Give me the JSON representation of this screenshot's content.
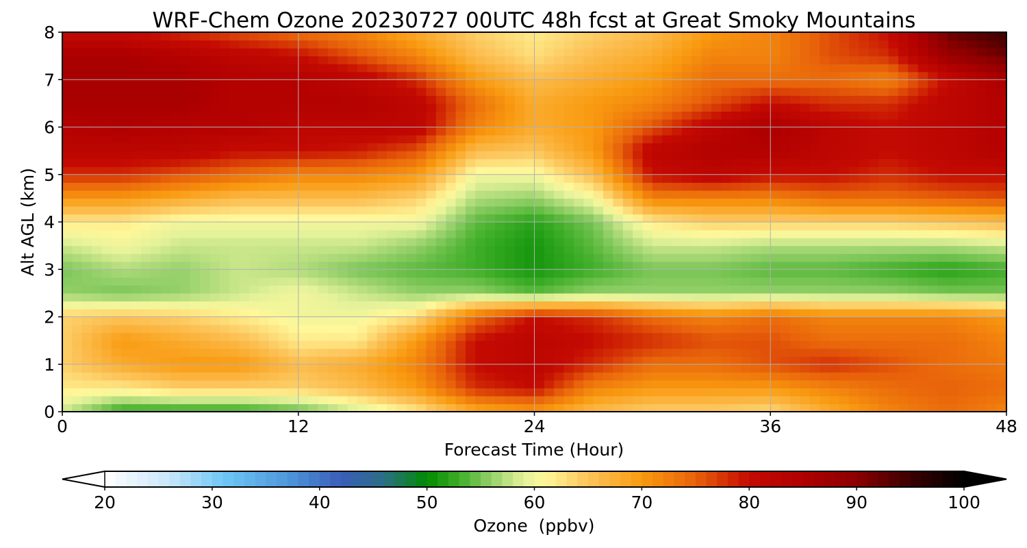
{
  "chart_data": {
    "type": "heatmap",
    "title": "WRF-Chem Ozone  20230727 00UTC 48h fcst at Great Smoky Mountains",
    "xlabel": "Forecast Time (Hour)",
    "ylabel": "Alt AGL (km)",
    "xlim": [
      0,
      48
    ],
    "ylim": [
      0,
      8
    ],
    "xticks": [
      0,
      12,
      24,
      36,
      48
    ],
    "yticks": [
      0,
      1,
      2,
      3,
      4,
      5,
      6,
      7,
      8
    ],
    "grid": true,
    "x": [
      0,
      3,
      6,
      9,
      12,
      15,
      18,
      21,
      24,
      27,
      30,
      33,
      36,
      39,
      42,
      45,
      48
    ],
    "y": [
      0,
      0.5,
      1,
      1.5,
      2,
      2.5,
      3,
      3.5,
      4,
      4.5,
      5,
      5.5,
      6,
      6.5,
      7,
      7.5,
      8
    ],
    "values": [
      [
        58,
        52,
        52,
        52,
        54,
        58,
        62,
        68,
        70,
        66,
        64,
        64,
        63,
        68,
        72,
        74,
        72
      ],
      [
        62,
        62,
        64,
        64,
        64,
        66,
        70,
        78,
        80,
        72,
        70,
        70,
        70,
        72,
        74,
        75,
        74
      ],
      [
        64,
        68,
        70,
        70,
        66,
        68,
        72,
        80,
        82,
        78,
        74,
        74,
        76,
        78,
        76,
        74,
        73
      ],
      [
        64,
        70,
        68,
        66,
        62,
        62,
        70,
        80,
        82,
        80,
        78,
        76,
        76,
        74,
        74,
        74,
        72
      ],
      [
        64,
        65,
        64,
        62,
        60,
        60,
        63,
        74,
        80,
        78,
        74,
        72,
        74,
        72,
        72,
        72,
        70
      ],
      [
        56,
        55,
        56,
        58,
        60,
        58,
        56,
        56,
        54,
        56,
        56,
        56,
        56,
        56,
        56,
        55,
        55
      ],
      [
        55,
        57,
        56,
        58,
        57,
        55,
        54,
        53,
        51,
        53,
        55,
        55,
        54,
        54,
        53,
        52,
        53
      ],
      [
        58,
        60,
        58,
        58,
        58,
        58,
        56,
        53,
        51,
        54,
        58,
        58,
        57,
        57,
        57,
        57,
        58
      ],
      [
        62,
        62,
        60,
        60,
        60,
        60,
        60,
        54,
        52,
        55,
        62,
        64,
        64,
        64,
        64,
        65,
        66
      ],
      [
        70,
        70,
        68,
        66,
        66,
        66,
        64,
        57,
        56,
        60,
        72,
        72,
        72,
        74,
        74,
        75,
        76
      ],
      [
        78,
        78,
        76,
        74,
        72,
        72,
        70,
        60,
        60,
        66,
        80,
        82,
        80,
        80,
        78,
        80,
        80
      ],
      [
        82,
        82,
        82,
        80,
        80,
        79,
        76,
        66,
        65,
        70,
        82,
        84,
        84,
        82,
        80,
        82,
        84
      ],
      [
        84,
        85,
        84,
        84,
        82,
        82,
        82,
        72,
        68,
        70,
        76,
        82,
        86,
        82,
        80,
        82,
        84
      ],
      [
        86,
        86,
        86,
        84,
        84,
        84,
        82,
        74,
        68,
        70,
        72,
        76,
        80,
        78,
        78,
        82,
        84
      ],
      [
        86,
        86,
        86,
        84,
        84,
        82,
        78,
        70,
        66,
        68,
        70,
        74,
        74,
        74,
        72,
        80,
        86
      ],
      [
        86,
        86,
        84,
        82,
        80,
        76,
        72,
        66,
        63,
        66,
        68,
        72,
        72,
        76,
        78,
        88,
        92
      ],
      [
        80,
        80,
        78,
        76,
        74,
        72,
        68,
        64,
        62,
        64,
        66,
        70,
        72,
        76,
        80,
        92,
        95
      ]
    ],
    "colorbar": {
      "label": "Ozone  (ppbv)",
      "min": 20,
      "max": 100,
      "ticks": [
        20,
        30,
        40,
        50,
        60,
        70,
        80,
        90,
        100
      ],
      "extend": "both",
      "stops": [
        {
          "v": 20,
          "c": "#ffffff"
        },
        {
          "v": 26,
          "c": "#c9e6fb"
        },
        {
          "v": 31,
          "c": "#6ec8f5"
        },
        {
          "v": 37,
          "c": "#4f97dc"
        },
        {
          "v": 42,
          "c": "#3a5db8"
        },
        {
          "v": 46,
          "c": "#2b6f86"
        },
        {
          "v": 50,
          "c": "#008a00"
        },
        {
          "v": 53,
          "c": "#3fae28"
        },
        {
          "v": 56,
          "c": "#95d06a"
        },
        {
          "v": 59,
          "c": "#e4f29a"
        },
        {
          "v": 61,
          "c": "#fff79a"
        },
        {
          "v": 65,
          "c": "#fcc45a"
        },
        {
          "v": 70,
          "c": "#f99a10"
        },
        {
          "v": 75,
          "c": "#e8620a"
        },
        {
          "v": 80,
          "c": "#c40a02"
        },
        {
          "v": 85,
          "c": "#b00000"
        },
        {
          "v": 90,
          "c": "#8c0000"
        },
        {
          "v": 95,
          "c": "#3a0000"
        },
        {
          "v": 100,
          "c": "#000000"
        }
      ]
    }
  }
}
